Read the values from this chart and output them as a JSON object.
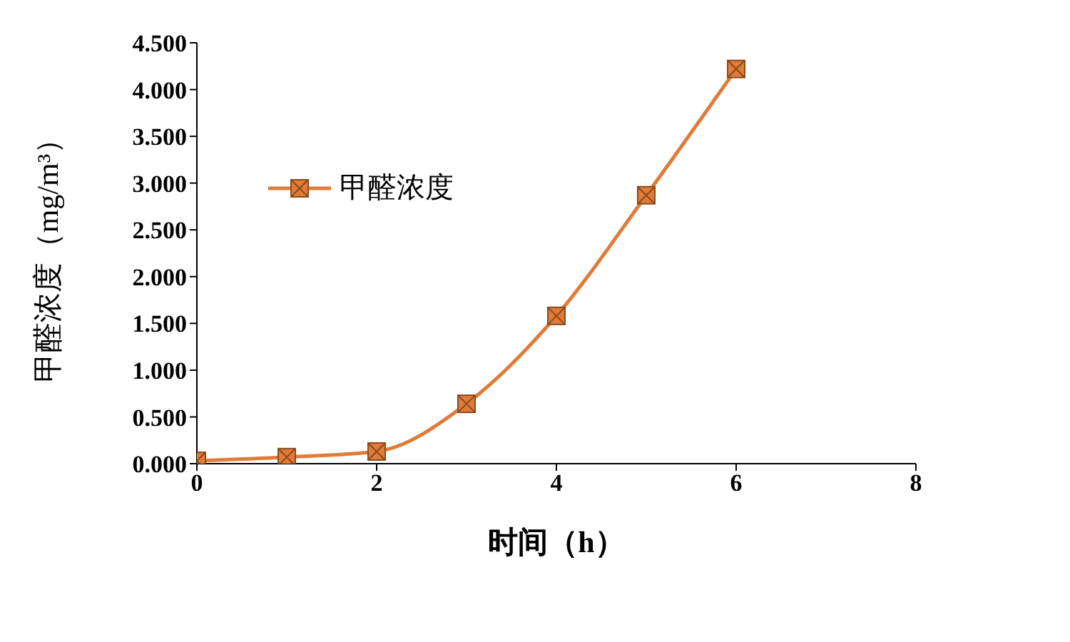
{
  "chart_data": {
    "type": "line",
    "xlabel": "时间（h）",
    "ylabel": "甲醛浓度（mg/m³）",
    "x": [
      0,
      1,
      2,
      3,
      4,
      5,
      6
    ],
    "series": [
      {
        "name": "甲醛浓度",
        "color": "#e07b39",
        "values": [
          0.03,
          0.07,
          0.13,
          0.64,
          1.58,
          2.87,
          4.22
        ]
      }
    ],
    "xlim": [
      0,
      8
    ],
    "xticks": [
      0,
      2,
      4,
      6,
      8
    ],
    "ylim": [
      0,
      4.5
    ],
    "yticks": [
      {
        "value": 0,
        "label": "0.000"
      },
      {
        "value": 0.5,
        "label": "0.500"
      },
      {
        "value": 1,
        "label": "1.000"
      },
      {
        "value": 1.5,
        "label": "1.500"
      },
      {
        "value": 2,
        "label": "2.000"
      },
      {
        "value": 2.5,
        "label": "2.500"
      },
      {
        "value": 3,
        "label": "3.000"
      },
      {
        "value": 3.5,
        "label": "3.500"
      },
      {
        "value": 4,
        "label": "4.000"
      },
      {
        "value": 4.5,
        "label": "4.500"
      }
    ],
    "grid": false,
    "legend": "top left",
    "marker": "square",
    "line_style": "solid"
  }
}
